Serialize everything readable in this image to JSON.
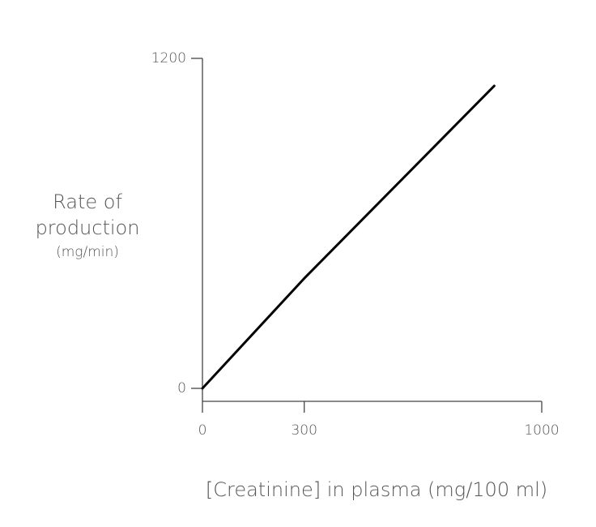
{
  "chart_data": {
    "type": "line",
    "ylabel": [
      "Rate of",
      "production"
    ],
    "ylabel_unit": "(mg/min)",
    "xlabel": "[Creatinine] in plasma (mg/100 ml)",
    "x": [
      0,
      300,
      860
    ],
    "series": [
      {
        "color": "#000000",
        "values": [
          0,
          400,
          1100
        ]
      }
    ],
    "xlim": [
      0,
      1000
    ],
    "xticks": [
      0,
      300,
      1000
    ],
    "ylim": [
      0,
      1200
    ],
    "yticks": [
      0,
      1200
    ]
  }
}
